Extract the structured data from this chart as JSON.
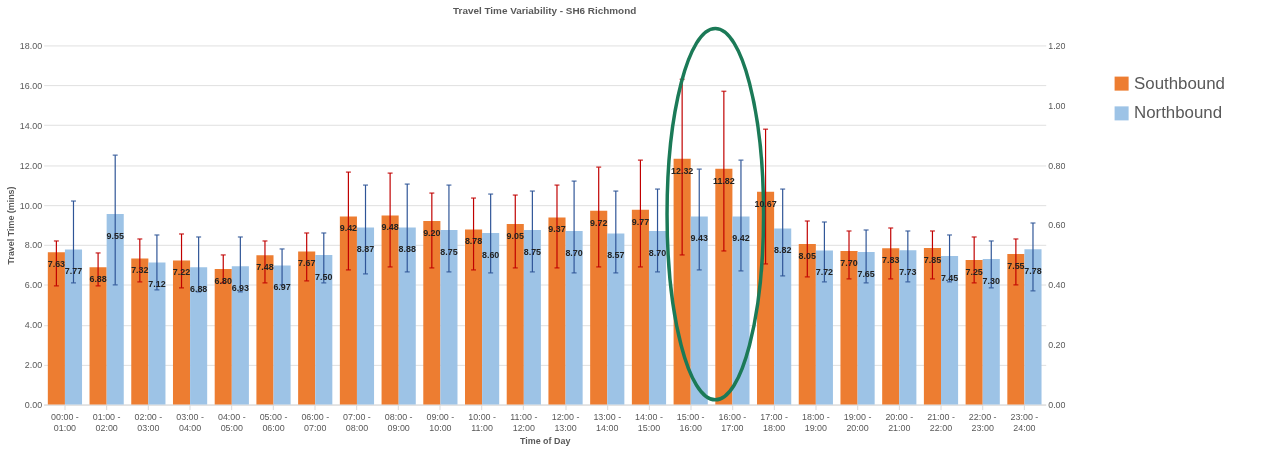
{
  "chart_data": {
    "type": "bar",
    "title": "Travel Time Variability - SH6 Richmond",
    "xlabel": "Time of Day",
    "ylabel": "Travel Time (mins)",
    "categories": [
      "00:00 - 01:00",
      "01:00 - 02:00",
      "02:00 - 03:00",
      "03:00 - 04:00",
      "04:00 - 05:00",
      "05:00 - 06:00",
      "06:00 - 07:00",
      "07:00 - 08:00",
      "08:00 - 09:00",
      "09:00 - 10:00",
      "10:00 - 11:00",
      "11:00 - 12:00",
      "12:00 - 13:00",
      "13:00 - 14:00",
      "14:00 - 15:00",
      "15:00 - 16:00",
      "16:00 - 17:00",
      "17:00 - 18:00",
      "18:00 - 19:00",
      "19:00 - 20:00",
      "20:00 - 21:00",
      "21:00 - 22:00",
      "22:00 - 23:00",
      "23:00 - 24:00"
    ],
    "series": [
      {
        "name": "Southbound",
        "color": "#ed7d31",
        "values": [
          7.63,
          6.88,
          7.32,
          7.22,
          6.8,
          7.48,
          7.67,
          9.42,
          9.48,
          9.2,
          8.78,
          9.05,
          9.37,
          9.72,
          9.77,
          12.32,
          11.82,
          10.67,
          8.05,
          7.7,
          7.83,
          7.85,
          7.25,
          7.55
        ],
        "value_labels": [
          "7.63",
          "6.88",
          "7.32",
          "7.22",
          "6.80",
          "7.48",
          "7.67",
          "9.42",
          "9.48",
          "9.20",
          "8.78",
          "9.05",
          "9.37",
          "9.72",
          "9.77",
          "12.32",
          "11.82",
          "10.67",
          "8.05",
          "7.70",
          "7.83",
          "7.85",
          "7.25",
          "7.55"
        ],
        "errors": [
          [
            5.95,
            8.2
          ],
          [
            5.95,
            7.6
          ],
          [
            6.15,
            8.3
          ],
          [
            5.85,
            8.55
          ],
          [
            6.1,
            7.5
          ],
          [
            6.1,
            8.2
          ],
          [
            6.2,
            8.6
          ],
          [
            6.75,
            11.65
          ],
          [
            6.9,
            11.6
          ],
          [
            6.85,
            10.6
          ],
          [
            6.75,
            10.35
          ],
          [
            6.85,
            10.5
          ],
          [
            6.85,
            11.0
          ],
          [
            6.9,
            11.9
          ],
          [
            6.9,
            12.25
          ],
          [
            7.5,
            16.3
          ],
          [
            7.7,
            15.7
          ],
          [
            7.05,
            13.8
          ],
          [
            6.4,
            9.2
          ],
          [
            6.3,
            8.7
          ],
          [
            6.3,
            8.85
          ],
          [
            6.3,
            8.7
          ],
          [
            6.1,
            8.4
          ],
          [
            6.0,
            8.3
          ]
        ]
      },
      {
        "name": "Northbound",
        "color": "#9dc3e6",
        "values": [
          7.77,
          9.55,
          7.12,
          6.88,
          6.93,
          6.97,
          7.5,
          8.87,
          8.88,
          8.75,
          8.6,
          8.75,
          8.7,
          8.57,
          8.7,
          9.43,
          9.42,
          8.82,
          7.72,
          7.65,
          7.73,
          7.45,
          7.3,
          7.78
        ],
        "value_labels": [
          "7.77",
          "9.55",
          "7.12",
          "6.88",
          "6.93",
          "6.97",
          "7.50",
          "8.87",
          "8.88",
          "8.75",
          "8.60",
          "8.75",
          "8.70",
          "8.57",
          "8.70",
          "9.43",
          "9.42",
          "8.82",
          "7.72",
          "7.65",
          "7.73",
          "7.45",
          "7.30",
          "7.78"
        ],
        "errors": [
          [
            6.1,
            10.2
          ],
          [
            6.0,
            12.5
          ],
          [
            5.75,
            8.5
          ],
          [
            5.65,
            8.4
          ],
          [
            5.65,
            8.4
          ],
          [
            6.0,
            7.8
          ],
          [
            6.1,
            8.6
          ],
          [
            6.55,
            11.0
          ],
          [
            6.65,
            11.05
          ],
          [
            6.65,
            11.0
          ],
          [
            6.6,
            10.55
          ],
          [
            6.65,
            10.7
          ],
          [
            6.6,
            11.2
          ],
          [
            6.6,
            10.7
          ],
          [
            6.65,
            10.8
          ],
          [
            6.75,
            11.8
          ],
          [
            6.7,
            12.25
          ],
          [
            6.45,
            10.8
          ],
          [
            6.15,
            9.15
          ],
          [
            6.1,
            8.75
          ],
          [
            6.15,
            8.7
          ],
          [
            6.15,
            8.5
          ],
          [
            5.85,
            8.2
          ],
          [
            5.7,
            9.1
          ]
        ]
      }
    ],
    "ylim": [
      0,
      18
    ],
    "yticks": [
      {
        "value": 0,
        "label": "0.00"
      },
      {
        "value": 2,
        "label": "2.00"
      },
      {
        "value": 4,
        "label": "4.00"
      },
      {
        "value": 6,
        "label": "6.00"
      },
      {
        "value": 8,
        "label": "8.00"
      },
      {
        "value": 10,
        "label": "10.00"
      },
      {
        "value": 12,
        "label": "12.00"
      },
      {
        "value": 14,
        "label": "14.00"
      },
      {
        "value": 16,
        "label": "16.00"
      },
      {
        "value": 18,
        "label": "18.00"
      }
    ],
    "y2lim": [
      0,
      1.2
    ],
    "y2ticks": [
      {
        "value": 0,
        "label": "0.00"
      },
      {
        "value": 0.2,
        "label": "0.20"
      },
      {
        "value": 0.4,
        "label": "0.40"
      },
      {
        "value": 0.6,
        "label": "0.60"
      },
      {
        "value": 0.8,
        "label": "0.80"
      },
      {
        "value": 1.0,
        "label": "1.00"
      },
      {
        "value": 1.2,
        "label": "1.20"
      }
    ],
    "grid": "y",
    "legend": "right"
  }
}
